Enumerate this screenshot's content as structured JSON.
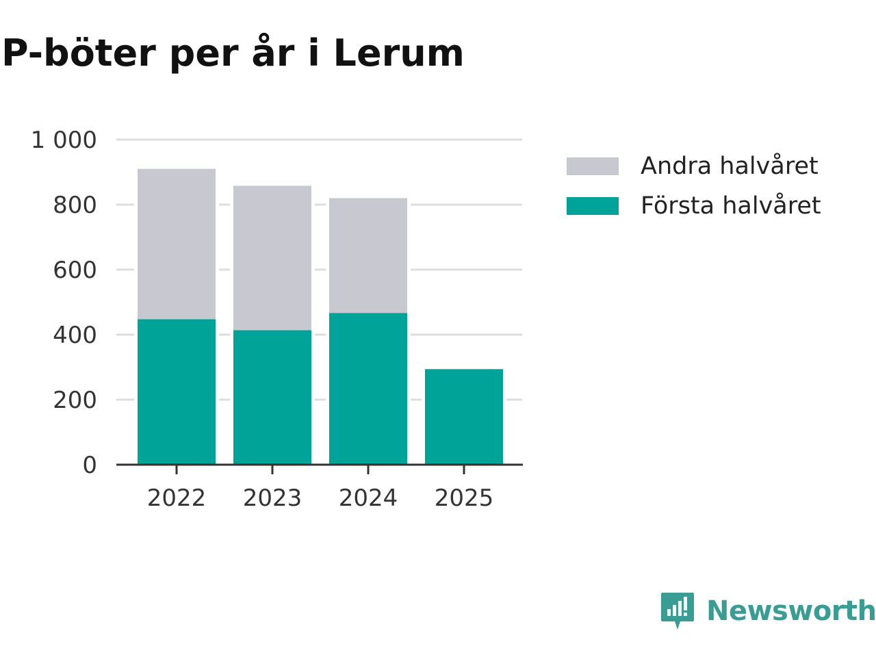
{
  "title": "P-böter per år i Lerum",
  "chart_data": {
    "type": "bar",
    "stacked": true,
    "title": "P-böter per år i Lerum",
    "categories": [
      "2022",
      "2023",
      "2024",
      "2025"
    ],
    "series": [
      {
        "name": "Första halvåret",
        "color": "#00a398",
        "values": [
          448,
          414,
          467,
          294
        ]
      },
      {
        "name": "Andra halvåret",
        "color": "#c8c8d0",
        "values": [
          462,
          444,
          353,
          0
        ]
      }
    ],
    "yticks": [
      0,
      200,
      400,
      600,
      800,
      1000
    ],
    "ytick_labels": [
      "0",
      "200",
      "400",
      "600",
      "800",
      "1 000"
    ],
    "ylim": [
      0,
      1000
    ],
    "xlabel": "",
    "ylabel": "",
    "grid": true,
    "legend_position": "top-right"
  },
  "legend": [
    {
      "label": "Andra halvåret",
      "color": "#c8c8d0"
    },
    {
      "label": "Första halvåret",
      "color": "#00a398"
    }
  ],
  "brand": {
    "name": "Newsworthy",
    "color": "#3a9d93"
  }
}
